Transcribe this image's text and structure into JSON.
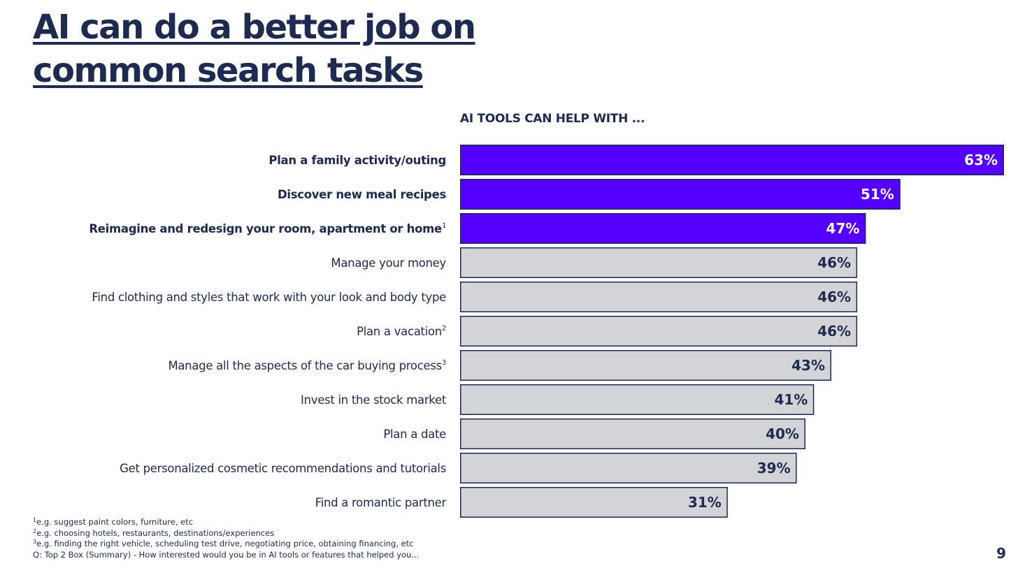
{
  "title_line1": "AI can do a better job on",
  "title_line2": "common search tasks",
  "subheading": "AI TOOLS CAN HELP WITH ...",
  "colors": {
    "highlight": "#5500ff",
    "neutral": "#d3d4d8",
    "border": "#1e2a4f",
    "text": "#1e2a4f",
    "highlight_label": "#ffffff"
  },
  "chart_data": {
    "type": "bar",
    "orientation": "horizontal",
    "value_format": "percent",
    "categories": [
      "Plan a family activity/outing",
      "Discover new meal recipes",
      "Reimagine and redesign your room, apartment or home",
      "Manage your money",
      "Find clothing and styles that work with your look and body type",
      "Plan a vacation",
      "Manage all the aspects of the car buying process",
      "Invest in the stock market",
      "Plan a date",
      "Get personalized cosmetic recommendations and tutorials",
      "Find a romantic partner"
    ],
    "footnote_marks": [
      "",
      "",
      "1",
      "",
      "",
      "2",
      "3",
      "",
      "",
      "",
      ""
    ],
    "values": [
      63,
      51,
      47,
      46,
      46,
      46,
      43,
      41,
      40,
      39,
      31
    ],
    "highlighted": [
      true,
      true,
      true,
      false,
      false,
      false,
      false,
      false,
      false,
      false,
      false
    ],
    "data_labels": [
      "63%",
      "51%",
      "47%",
      "46%",
      "46%",
      "46%",
      "43%",
      "41%",
      "40%",
      "39%",
      "31%"
    ],
    "title": "AI TOOLS CAN HELP WITH ...",
    "xlabel": "",
    "ylabel": "",
    "xlim": [
      0,
      63
    ],
    "grid": false,
    "legend": "none"
  },
  "footnotes": [
    {
      "mark": "1",
      "text": "e.g. suggest paint colors, furniture, etc"
    },
    {
      "mark": "2",
      "text": "e.g. choosing hotels, restaurants, destinations/experiences"
    },
    {
      "mark": "3",
      "text": "e.g. finding the right vehicle, scheduling test drive, negotiating price, obtaining financing, etc"
    }
  ],
  "question": "Q: Top 2 Box (Summary) - How interested would you be in AI tools or features that helped you...",
  "page_number": "9"
}
